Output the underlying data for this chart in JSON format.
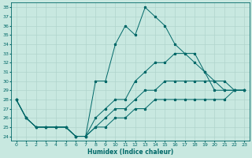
{
  "xlabel": "Humidex (Indice chaleur)",
  "ylabel": "",
  "background_color": "#c8e8e0",
  "grid_color": "#b0d4cc",
  "line_color": "#006868",
  "xlim": [
    -0.5,
    23.5
  ],
  "ylim": [
    23.5,
    38.5
  ],
  "yticks": [
    24,
    25,
    26,
    27,
    28,
    29,
    30,
    31,
    32,
    33,
    34,
    35,
    36,
    37,
    38
  ],
  "xticks": [
    0,
    1,
    2,
    3,
    4,
    5,
    6,
    7,
    8,
    9,
    10,
    11,
    12,
    13,
    14,
    15,
    16,
    17,
    18,
    19,
    20,
    21,
    22,
    23
  ],
  "series": [
    [
      28,
      26,
      25,
      25,
      25,
      25,
      24,
      24,
      30,
      30,
      34,
      36,
      35,
      38,
      37,
      36,
      34,
      33,
      33,
      31,
      29,
      29,
      29,
      29
    ],
    [
      28,
      26,
      25,
      25,
      25,
      25,
      24,
      24,
      26,
      27,
      28,
      28,
      30,
      31,
      32,
      32,
      33,
      33,
      32,
      31,
      30,
      30,
      29,
      29
    ],
    [
      28,
      26,
      25,
      25,
      25,
      25,
      24,
      24,
      25,
      26,
      27,
      27,
      28,
      29,
      29,
      30,
      30,
      30,
      30,
      30,
      30,
      29,
      29,
      29
    ],
    [
      28,
      26,
      25,
      25,
      25,
      25,
      24,
      24,
      25,
      25,
      26,
      26,
      27,
      27,
      28,
      28,
      28,
      28,
      28,
      28,
      28,
      28,
      29,
      29
    ]
  ]
}
